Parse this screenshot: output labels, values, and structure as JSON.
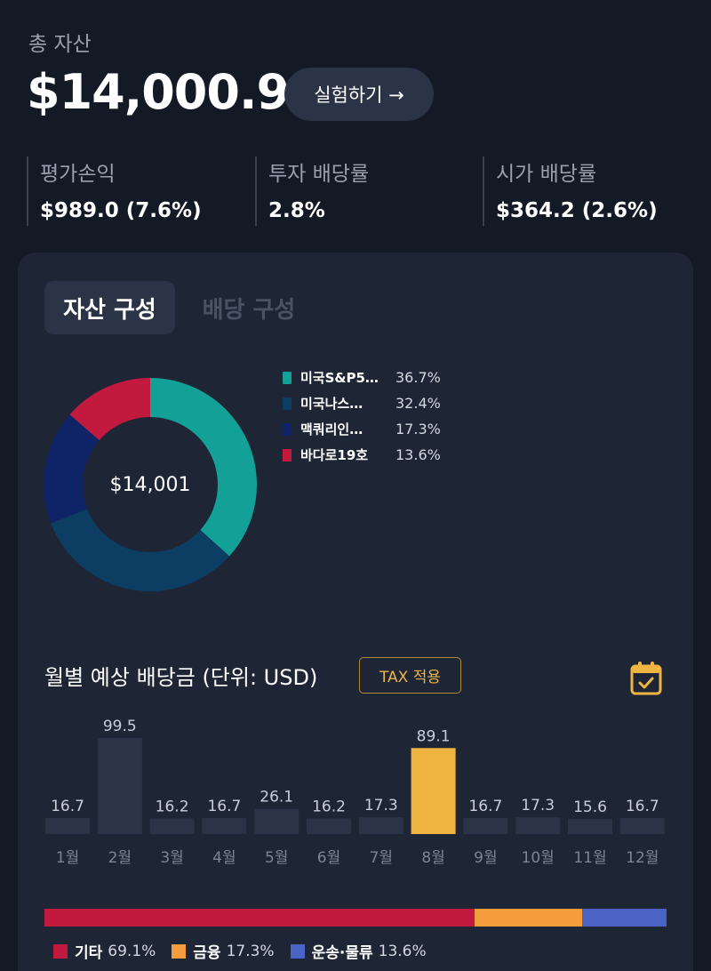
{
  "summary": {
    "total_label": "총 자산",
    "total_value": "$14,000.9",
    "try_button": "실험하기 →"
  },
  "stats": [
    {
      "label": "평가손익",
      "value": "$989.0 (7.6%)"
    },
    {
      "label": "투자 배당률",
      "value": "2.8%"
    },
    {
      "label": "시가 배당률",
      "value": "$364.2 (2.6%)"
    }
  ],
  "tabs": [
    {
      "label": "자산 구성",
      "active": true
    },
    {
      "label": "배당 구성",
      "active": false
    }
  ],
  "donut": {
    "center_label": "$14,001",
    "items": [
      {
        "name": "미국S&P5…",
        "percent": "36.7%",
        "value": 36.7,
        "color": "#13a097"
      },
      {
        "name": "미국나스…",
        "percent": "32.4%",
        "value": 32.4,
        "color": "#0c3d63"
      },
      {
        "name": "맥쿼리인…",
        "percent": "17.3%",
        "value": 17.3,
        "color": "#0f2467"
      },
      {
        "name": "바다로19호",
        "percent": "13.6%",
        "value": 13.6,
        "color": "#c2193f"
      }
    ]
  },
  "monthly": {
    "title": "월별 예상 배당금 (단위: USD)",
    "tax_button": "TAX 적용",
    "icon": "calendar-check-icon"
  },
  "chart_data": {
    "type": "bar",
    "categories": [
      "1월",
      "2월",
      "3월",
      "4월",
      "5월",
      "6월",
      "7월",
      "8월",
      "9월",
      "10월",
      "11월",
      "12월"
    ],
    "values": [
      16.7,
      99.5,
      16.2,
      16.7,
      26.1,
      16.2,
      17.3,
      89.1,
      16.7,
      17.3,
      15.6,
      16.7
    ],
    "highlight_index": 7,
    "bar_color": "#2b3346",
    "highlight_color": "#f0b540"
  },
  "categories_breakdown": [
    {
      "name": "기타",
      "percent": "69.1%",
      "value": 69.1,
      "color": "#c2193f"
    },
    {
      "name": "금융",
      "percent": "17.3%",
      "value": 17.3,
      "color": "#f59c3c"
    },
    {
      "name": "운송·물류",
      "percent": "13.6%",
      "value": 13.6,
      "color": "#4a63c4"
    }
  ]
}
